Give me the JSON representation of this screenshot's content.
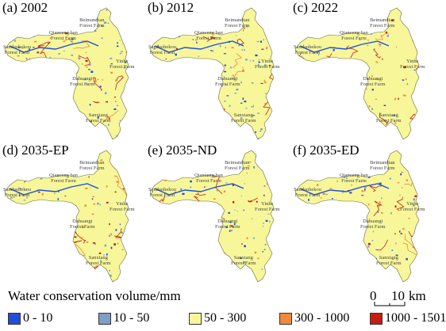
{
  "panels": [
    {
      "label": "(a) 2002"
    },
    {
      "label": "(b) 2012"
    },
    {
      "label": "(c) 2022"
    },
    {
      "label": "(d) 2035-EP"
    },
    {
      "label": "(e) 2035-ND"
    },
    {
      "label": "(f) 2035-ED"
    }
  ],
  "place_names": {
    "beimandian": [
      "Beimandian",
      "Forest Farm"
    ],
    "qianceng": [
      "Qianceng ban",
      "Forest Farm"
    ],
    "sandaohekou": [
      "Sandaohekou",
      "Forest Farm"
    ],
    "yinhe": [
      "Yinhe",
      "Forest Farm"
    ],
    "dahuangi": [
      "Dahuangi",
      "Forest Farm"
    ],
    "sanxiang": [
      "Sanxiang",
      "Forest Farm"
    ]
  },
  "legend": {
    "title": "Water conservation volume/mm",
    "items": [
      {
        "label": "0 - 10",
        "color": "#1f4fd8"
      },
      {
        "label": "10 - 50",
        "color": "#7f9fc4"
      },
      {
        "label": "50 - 300",
        "color": "#f7f79a"
      },
      {
        "label": "300 - 1000",
        "color": "#ef8a3a"
      },
      {
        "label": "1000 - 1501",
        "color": "#c81c10"
      }
    ]
  },
  "scale_bar": {
    "zero": "0",
    "distance": "10",
    "unit": "km"
  },
  "colors": {
    "low": "#1f4fd8",
    "lowmid": "#7f9fc4",
    "mid": "#f7f79a",
    "high": "#ef8a3a",
    "top": "#c81c10",
    "label_text": "#444444"
  }
}
